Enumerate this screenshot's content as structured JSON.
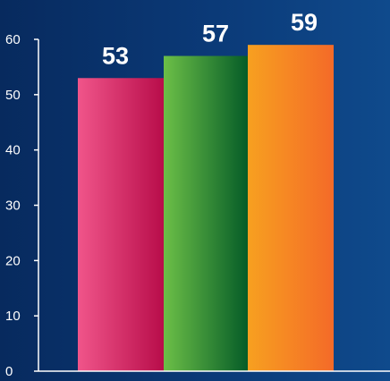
{
  "chart_data": {
    "type": "bar",
    "title": "",
    "xlabel": "",
    "ylabel": "",
    "ylim": [
      0,
      60
    ],
    "y_ticks": [
      "0",
      "10",
      "20",
      "30",
      "40",
      "50",
      "60"
    ],
    "grid": false,
    "legend": "none",
    "values": [
      53,
      57,
      59
    ],
    "data_labels": [
      "53",
      "57",
      "59"
    ],
    "bar_colors": [
      [
        "#f0558a",
        "#b80d4a"
      ],
      [
        "#6cbf47",
        "#035a27"
      ],
      [
        "#f7a020",
        "#f46a28"
      ]
    ],
    "axis_color": "#ffffff",
    "background": [
      "#072a5e",
      "#0f4a8c"
    ]
  }
}
